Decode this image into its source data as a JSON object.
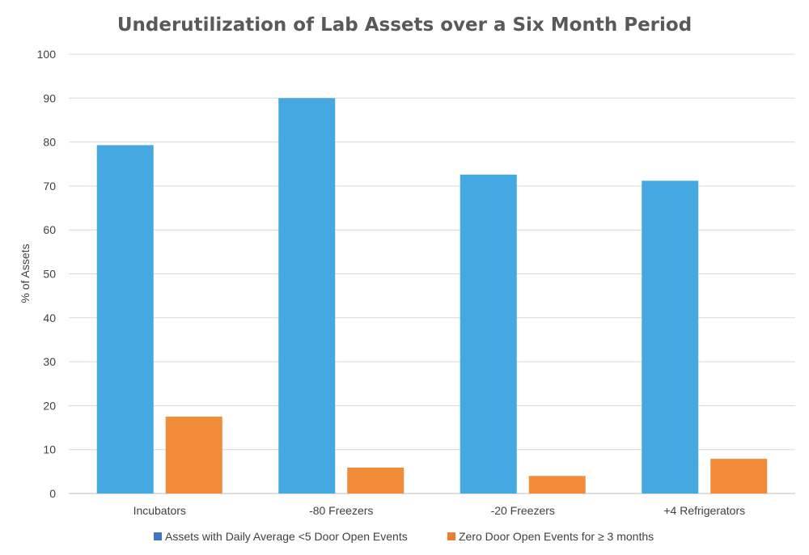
{
  "chart_data": {
    "type": "bar",
    "title": "Underutilization of Lab Assets over a Six Month Period",
    "xlabel": "",
    "ylabel": "% of Assets",
    "ylim": [
      0,
      100
    ],
    "yticks": [
      0,
      10,
      20,
      30,
      40,
      50,
      60,
      70,
      80,
      90,
      100
    ],
    "categories": [
      "Incubators",
      "-80 Freezers",
      "-20 Freezers",
      "+4 Refrigerators"
    ],
    "series": [
      {
        "name": "Assets with Daily Average <5 Door Open Events",
        "values": [
          79.3,
          90.0,
          72.6,
          71.2
        ],
        "color": "#46A8E0",
        "legend_color": "#4472C4"
      },
      {
        "name": "Zero Door Open Events for ≥ 3 months",
        "values": [
          17.5,
          5.9,
          4.0,
          7.9
        ],
        "color": "#F28C38",
        "legend_color": "#ED7D31"
      }
    ],
    "grid": true,
    "legend_position": "bottom"
  }
}
